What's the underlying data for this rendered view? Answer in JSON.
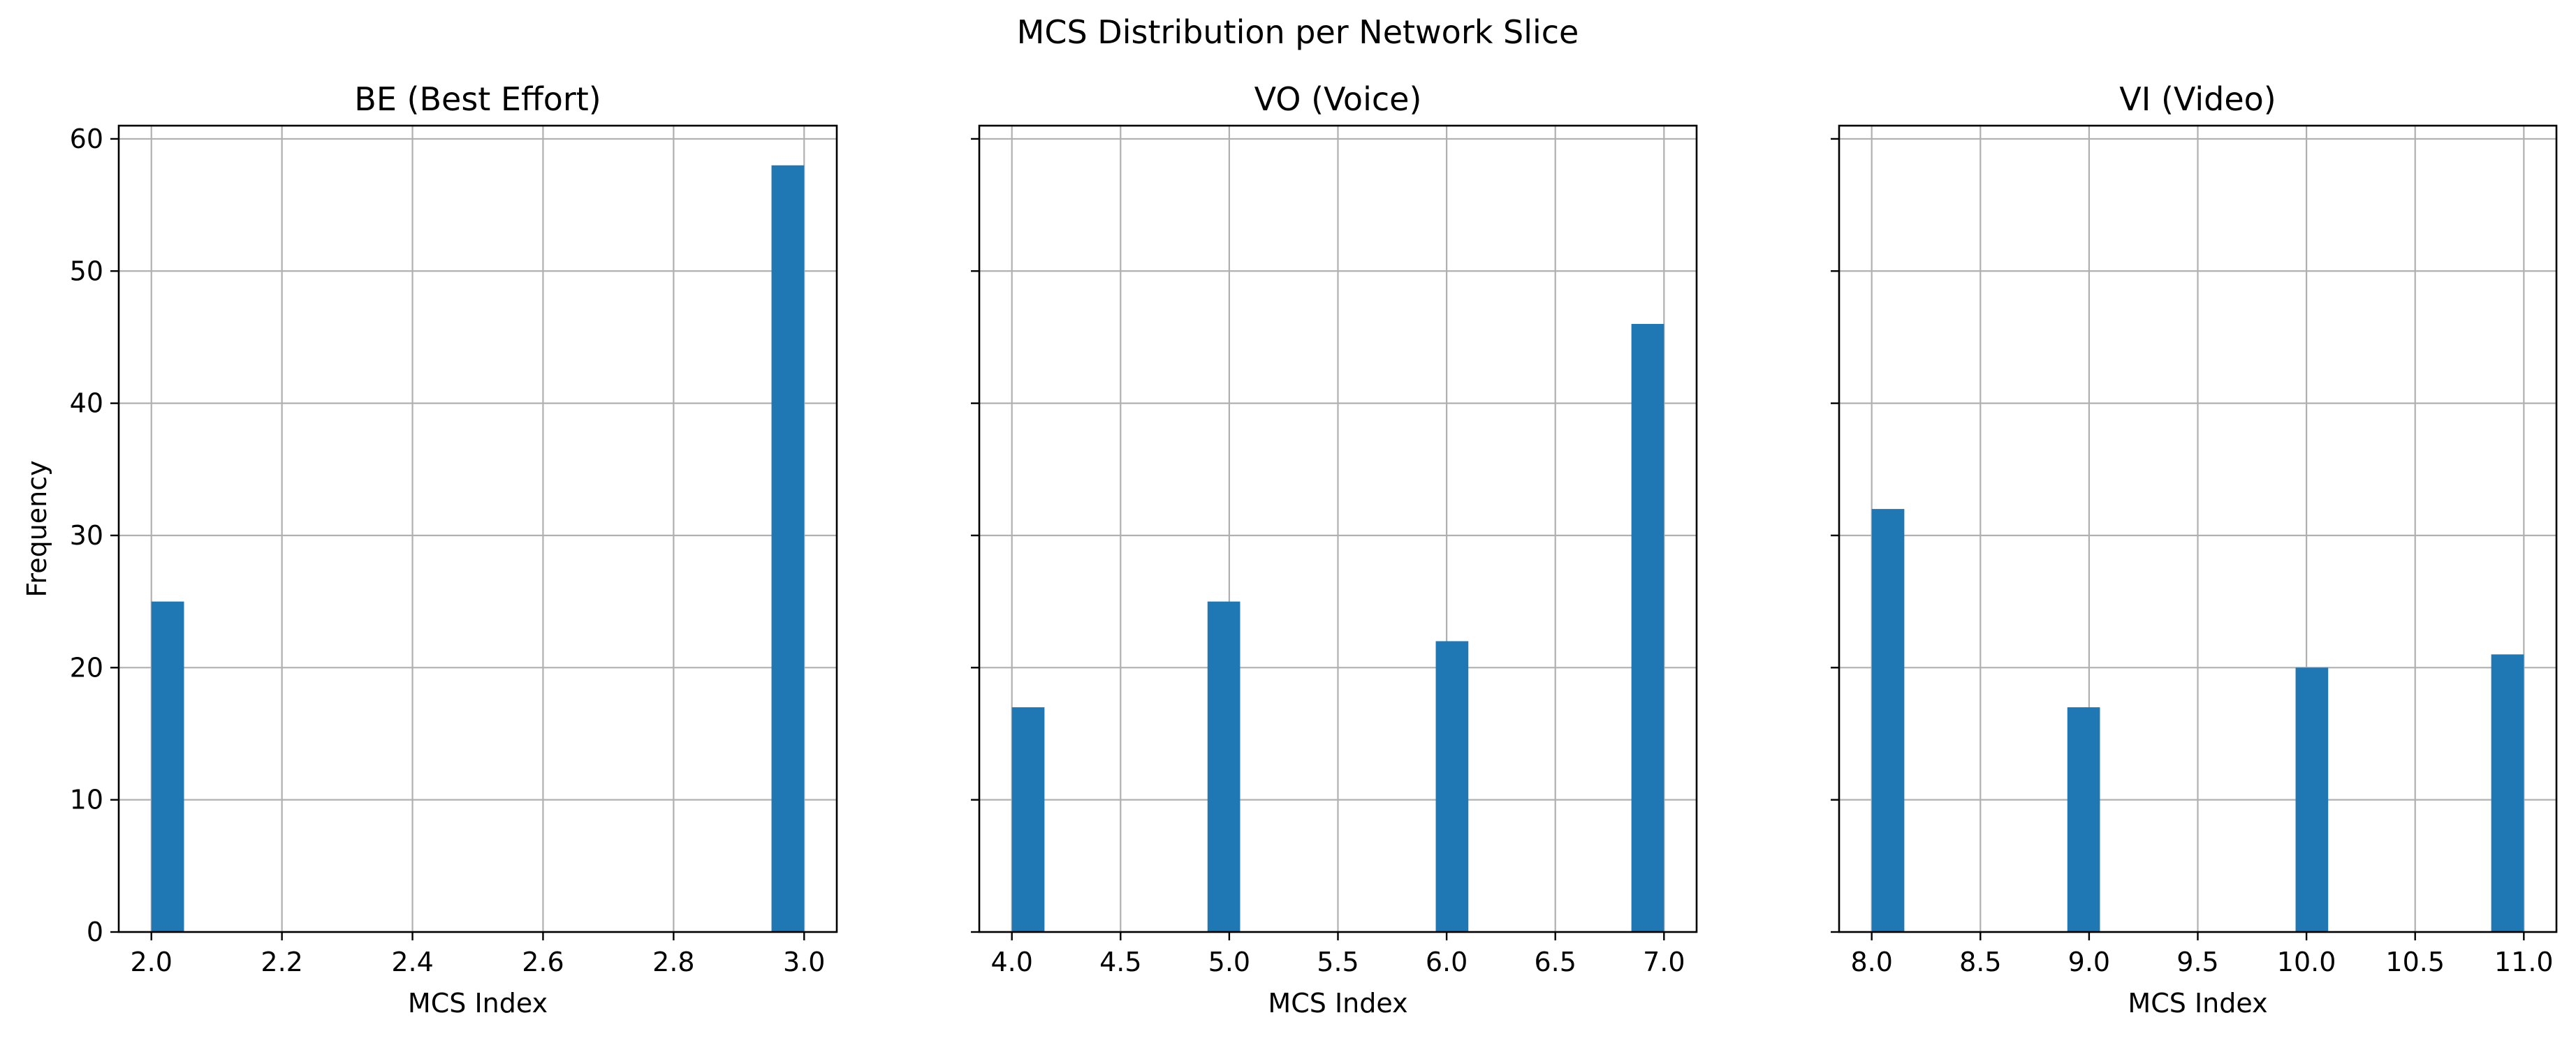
{
  "figure_title": "MCS Distribution per Network Slice",
  "colors": {
    "bar": "#1f77b4",
    "grid": "#b0b0b0",
    "axis": "#000000"
  },
  "chart_data": [
    {
      "type": "bar",
      "title": "BE (Best Effort)",
      "xlabel": "MCS Index",
      "ylabel": "Frequency",
      "xlim": [
        1.95,
        3.05
      ],
      "ylim": [
        0,
        61
      ],
      "xticks": [
        2.0,
        2.2,
        2.4,
        2.6,
        2.8,
        3.0
      ],
      "xtick_labels": [
        "2.0",
        "2.2",
        "2.4",
        "2.6",
        "2.8",
        "3.0"
      ],
      "yticks": [
        0,
        10,
        20,
        30,
        40,
        50,
        60
      ],
      "ytick_labels": [
        "0",
        "10",
        "20",
        "30",
        "40",
        "50",
        "60"
      ],
      "grid": true,
      "bins": [
        {
          "start": 2.0,
          "end": 2.05,
          "value": 25
        },
        {
          "start": 2.95,
          "end": 3.0,
          "value": 58
        }
      ]
    },
    {
      "type": "bar",
      "title": "VO (Voice)",
      "xlabel": "MCS Index",
      "ylabel": "",
      "xlim": [
        3.85,
        7.15
      ],
      "ylim": [
        0,
        61
      ],
      "xticks": [
        4.0,
        4.5,
        5.0,
        5.5,
        6.0,
        6.5,
        7.0
      ],
      "xtick_labels": [
        "4.0",
        "4.5",
        "5.0",
        "5.5",
        "6.0",
        "6.5",
        "7.0"
      ],
      "yticks": [
        0,
        10,
        20,
        30,
        40,
        50,
        60
      ],
      "ytick_labels": [],
      "grid": true,
      "bins": [
        {
          "start": 4.0,
          "end": 4.15,
          "value": 17
        },
        {
          "start": 4.9,
          "end": 5.05,
          "value": 25
        },
        {
          "start": 5.95,
          "end": 6.1,
          "value": 22
        },
        {
          "start": 6.85,
          "end": 7.0,
          "value": 46
        }
      ]
    },
    {
      "type": "bar",
      "title": "VI (Video)",
      "xlabel": "MCS Index",
      "ylabel": "",
      "xlim": [
        7.85,
        11.15
      ],
      "ylim": [
        0,
        61
      ],
      "xticks": [
        8.0,
        8.5,
        9.0,
        9.5,
        10.0,
        10.5,
        11.0
      ],
      "xtick_labels": [
        "8.0",
        "8.5",
        "9.0",
        "9.5",
        "10.0",
        "10.5",
        "11.0"
      ],
      "yticks": [
        0,
        10,
        20,
        30,
        40,
        50,
        60
      ],
      "ytick_labels": [],
      "grid": true,
      "bins": [
        {
          "start": 8.0,
          "end": 8.15,
          "value": 32
        },
        {
          "start": 8.9,
          "end": 9.05,
          "value": 17
        },
        {
          "start": 9.95,
          "end": 10.1,
          "value": 20
        },
        {
          "start": 10.85,
          "end": 11.0,
          "value": 21
        }
      ]
    }
  ]
}
